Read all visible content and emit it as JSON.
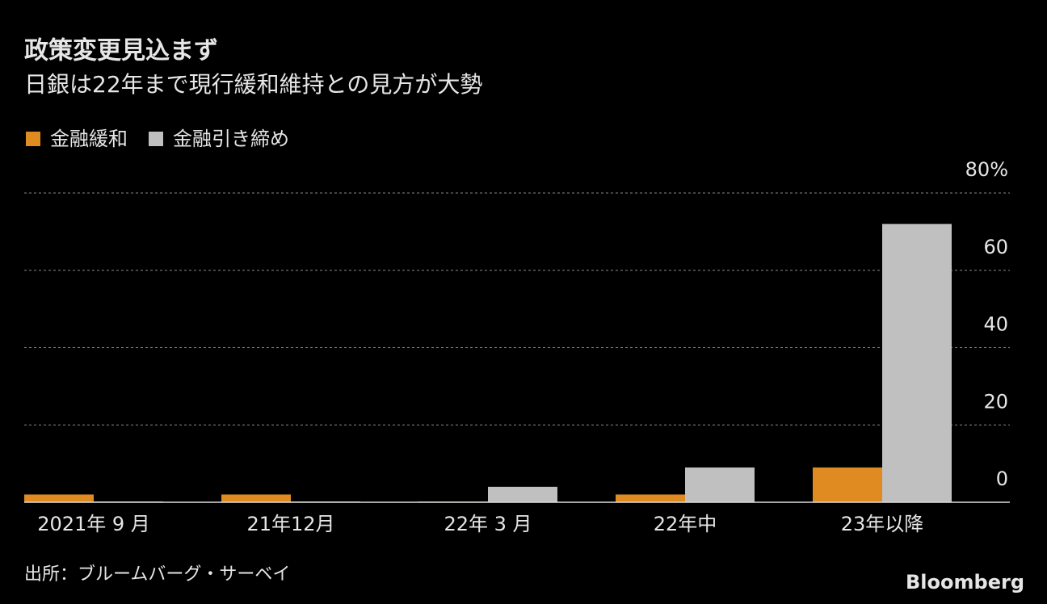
{
  "chart_data": {
    "type": "bar",
    "title": "政策変更見込まず",
    "subtitle": "日銀は22年まで現行緩和維持との見方が大勢",
    "categories": [
      "2021年 9 月",
      "21年12月",
      "22年 3 月",
      "22年中",
      "23年以降"
    ],
    "series": [
      {
        "name": "金融緩和",
        "color": "#e08a22",
        "values": [
          2,
          2,
          0.2,
          2,
          9
        ]
      },
      {
        "name": "金融引き締め",
        "color": "#c0c0c0",
        "values": [
          0.2,
          0.2,
          4,
          9,
          72
        ]
      }
    ],
    "ylim": [
      0,
      80
    ],
    "yticks": [
      0,
      20,
      40,
      60,
      {
        "value": 80,
        "label": "80%"
      }
    ],
    "grid": true,
    "source": "出所：ブルームバーグ・サーベイ",
    "logo": "Bloomberg"
  }
}
